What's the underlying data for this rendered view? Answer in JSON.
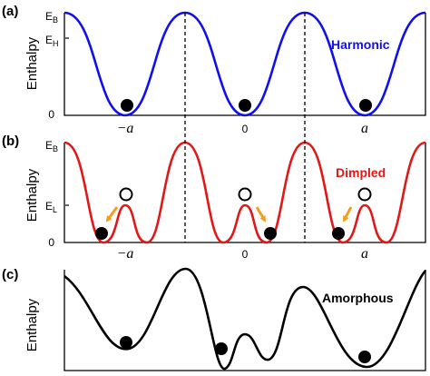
{
  "panels": [
    {
      "id": "a",
      "label": "(a)",
      "ylabel": "Enthalpy",
      "series_name": "Harmonic",
      "levels": {
        "top": "E",
        "top_sub": "B",
        "mid": "E",
        "mid_sub": "H",
        "zero": "0"
      },
      "x_ticks": {
        "minus": "−a",
        "zero": "0",
        "plus": "a"
      },
      "colors": {
        "curve": "#1010ee",
        "label": "#1010ee"
      }
    },
    {
      "id": "b",
      "label": "(b)",
      "ylabel": "Enthalpy",
      "series_name": "Dimpled",
      "levels": {
        "top": "E",
        "top_sub": "B",
        "mid": "E",
        "mid_sub": "L",
        "zero": "0"
      },
      "x_ticks": {
        "minus": "−a",
        "zero": "0",
        "plus": "a"
      },
      "colors": {
        "curve": "#e01818",
        "label": "#e01818",
        "arrow": "#f0a020"
      }
    },
    {
      "id": "c",
      "label": "(c)",
      "ylabel": "Enthalpy",
      "series_name": "Amorphous",
      "colors": {
        "curve": "#000000",
        "label": "#000000"
      }
    }
  ]
}
